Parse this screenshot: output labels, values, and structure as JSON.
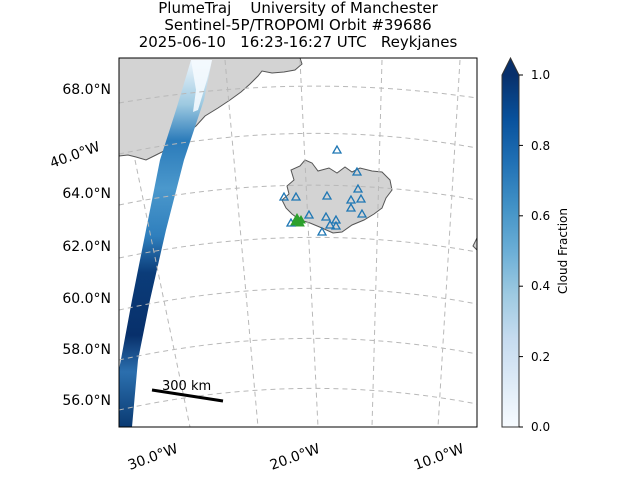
{
  "title": {
    "line1": "PlumeTraj    University of Manchester",
    "line2": "Sentinel-5P/TROPOMI Orbit #39686",
    "line3": "2025-06-10   16:23-16:27 UTC   Reykjanes"
  },
  "map": {
    "lat_labels": [
      "68.0°N",
      "64.0°N",
      "62.0°N",
      "60.0°N",
      "58.0°N",
      "56.0°N"
    ],
    "lon_labels_left": [
      "40.0°W"
    ],
    "lon_labels_bottom": [
      "30.0°W",
      "20.0°W",
      "10.0°W"
    ],
    "scale_bar_label": "300 km",
    "land_color": "#d3d3d3",
    "coast_color": "#555555",
    "grid_color": "#b8b8b8",
    "volcano_marker_color": "#1f77b4",
    "source_marker_color": "#2ca02c"
  },
  "colorbar": {
    "label": "Cloud Fraction",
    "ticks": [
      "0.0",
      "0.2",
      "0.4",
      "0.6",
      "0.8",
      "1.0"
    ],
    "range": [
      0.0,
      1.0
    ],
    "colormap": "Blues",
    "extend": "max"
  }
}
